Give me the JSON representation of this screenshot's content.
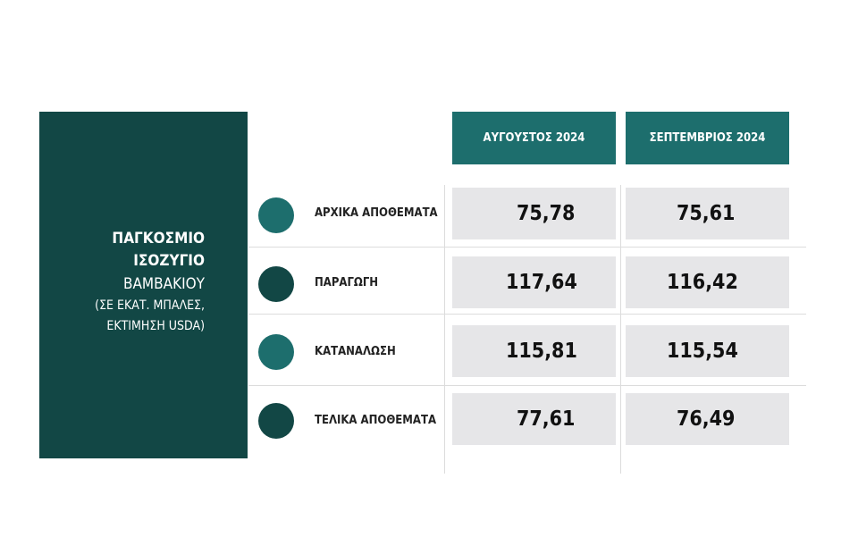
{
  "title_block": {
    "line1": "ΠΑΓΚΟΣΜΙΟ",
    "line2": "ΙΣΟΖΥΓΙΟ",
    "line3": "ΒΑΜΒΑΚΙΟΥ",
    "line4": "(ΣΕ ΕΚΑΤ. ΜΠΑΛΕΣ,",
    "line5": "ΕΚΤΙΜΗΣΗ USDA)"
  },
  "columns": [
    "ΑΥΓΟΥΣΤΟΣ 2024",
    "ΣΕΠΤΕΜΒΡΙΟΣ 2024"
  ],
  "rows": [
    {
      "label": "ΑΡΧΙΚΑ ΑΠΟΘΕΜΑΤΑ",
      "values": [
        "75,78",
        "75,61"
      ]
    },
    {
      "label": "ΠΑΡΑΓΩΓΗ",
      "values": [
        "117,64",
        "116,42"
      ]
    },
    {
      "label": "ΚΑΤΑΝΑΛΩΣΗ",
      "values": [
        "115,81",
        "115,54"
      ]
    },
    {
      "label": "ΤΕΛΙΚΑ ΑΠΟΘΕΜΑΤΑ",
      "values": [
        "77,61",
        "76,49"
      ]
    }
  ],
  "colors": {
    "dark_teal": "#124745",
    "teal": "#1d6e6d",
    "cell_gray": "#e6e6e8"
  }
}
